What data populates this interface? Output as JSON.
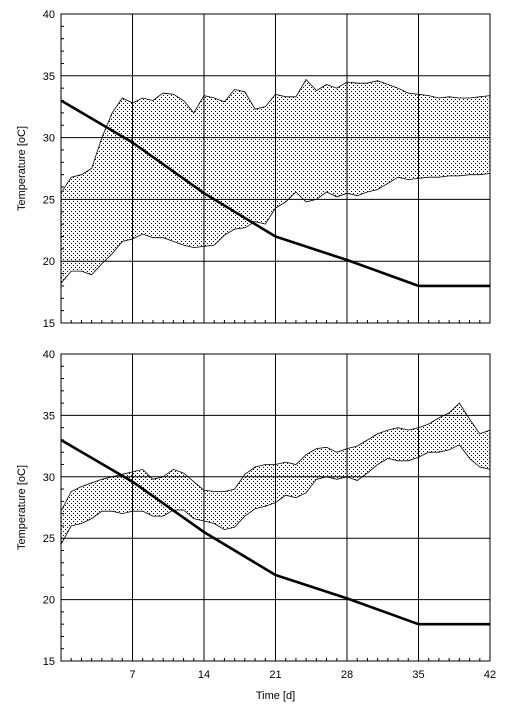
{
  "chart_data": [
    {
      "type": "area",
      "ylabel": "Temperature  [oC]",
      "xlabel": "",
      "xlim": [
        0,
        42
      ],
      "ylim": [
        15,
        40
      ],
      "xticks": [
        7,
        14,
        21,
        28,
        35,
        42
      ],
      "yticks": [
        15,
        20,
        25,
        30,
        35,
        40
      ],
      "show_xtick_labels": false,
      "grid": true,
      "band": {
        "x": [
          0,
          1,
          2,
          3,
          4,
          5,
          6,
          7,
          8,
          9,
          10,
          11,
          12,
          13,
          14,
          15,
          16,
          17,
          18,
          19,
          20,
          21,
          22,
          23,
          24,
          25,
          26,
          27,
          28,
          29,
          30,
          31,
          32,
          33,
          34,
          35,
          36,
          37,
          38,
          39,
          40,
          41,
          42
        ],
        "upper": [
          25.5,
          26.8,
          27,
          27.5,
          30,
          32,
          33.2,
          32.8,
          33.2,
          33.0,
          33.6,
          33.5,
          33.0,
          32.0,
          33.4,
          33.2,
          32.9,
          33.9,
          33.7,
          32.3,
          32.5,
          33.5,
          33.3,
          33.3,
          34.7,
          33.8,
          34.3,
          34.0,
          34.5,
          34.4,
          34.4,
          34.6,
          34.3,
          34.0,
          33.6,
          33.5,
          33.4,
          33.2,
          33.3,
          33.2,
          33.2,
          33.3,
          33.4
        ],
        "lower": [
          18.2,
          19.2,
          19.2,
          18.9,
          19.8,
          20.6,
          21.6,
          21.8,
          22.2,
          21.9,
          21.9,
          21.6,
          21.3,
          21.1,
          21.2,
          21.3,
          22.1,
          22.6,
          22.7,
          23.2,
          23.0,
          24.3,
          24.8,
          25.6,
          24.8,
          25.0,
          25.6,
          25.2,
          25.5,
          25.3,
          25.6,
          25.8,
          26.3,
          26.8,
          26.6,
          26.7,
          26.8,
          26.8,
          26.9,
          26.9,
          27.0,
          27.0,
          27.1
        ]
      },
      "series": [
        {
          "x": [
            0,
            7,
            14,
            21,
            28,
            35,
            42
          ],
          "values": [
            33.0,
            29.6,
            25.5,
            22.0,
            20.1,
            18.0,
            18.0
          ]
        }
      ]
    },
    {
      "type": "area",
      "ylabel": "Temperature  [oC]",
      "xlabel": "Time [d]",
      "xlim": [
        0,
        42
      ],
      "ylim": [
        15,
        40
      ],
      "xticks": [
        7,
        14,
        21,
        28,
        35,
        42
      ],
      "yticks": [
        15,
        20,
        25,
        30,
        35,
        40
      ],
      "show_xtick_labels": true,
      "grid": true,
      "band": {
        "x": [
          0,
          1,
          2,
          3,
          4,
          5,
          6,
          7,
          8,
          9,
          10,
          11,
          12,
          13,
          14,
          15,
          16,
          17,
          18,
          19,
          20,
          21,
          22,
          23,
          24,
          25,
          26,
          27,
          28,
          29,
          30,
          31,
          32,
          33,
          34,
          35,
          36,
          37,
          38,
          39,
          40,
          41,
          42
        ],
        "upper": [
          27.2,
          28.8,
          29.2,
          29.5,
          29.8,
          30.0,
          30.2,
          30.4,
          30.6,
          29.8,
          30.0,
          30.6,
          30.3,
          29.6,
          28.9,
          28.8,
          28.8,
          29.0,
          30.2,
          30.8,
          31.0,
          31.0,
          31.2,
          31.0,
          31.8,
          32.3,
          32.4,
          32.0,
          32.3,
          32.5,
          33.0,
          33.5,
          33.8,
          34.0,
          33.8,
          34.0,
          34.3,
          34.8,
          35.2,
          36.0,
          34.7,
          33.5,
          33.8
        ],
        "lower": [
          24.5,
          26.0,
          26.2,
          26.6,
          27.2,
          27.2,
          27.0,
          27.2,
          27.2,
          26.8,
          26.8,
          27.3,
          27.3,
          26.6,
          26.4,
          26.2,
          25.7,
          25.9,
          26.8,
          27.4,
          27.6,
          27.9,
          28.5,
          28.3,
          28.7,
          29.8,
          30.0,
          29.8,
          30.0,
          29.7,
          30.3,
          31.0,
          31.5,
          31.3,
          31.3,
          31.6,
          32.0,
          32.0,
          32.2,
          32.6,
          31.5,
          30.8,
          30.6
        ]
      },
      "series": [
        {
          "x": [
            0,
            7,
            14,
            21,
            28,
            35,
            42
          ],
          "values": [
            33.0,
            29.6,
            25.5,
            22.0,
            20.1,
            18.0,
            18.0
          ]
        }
      ]
    }
  ]
}
